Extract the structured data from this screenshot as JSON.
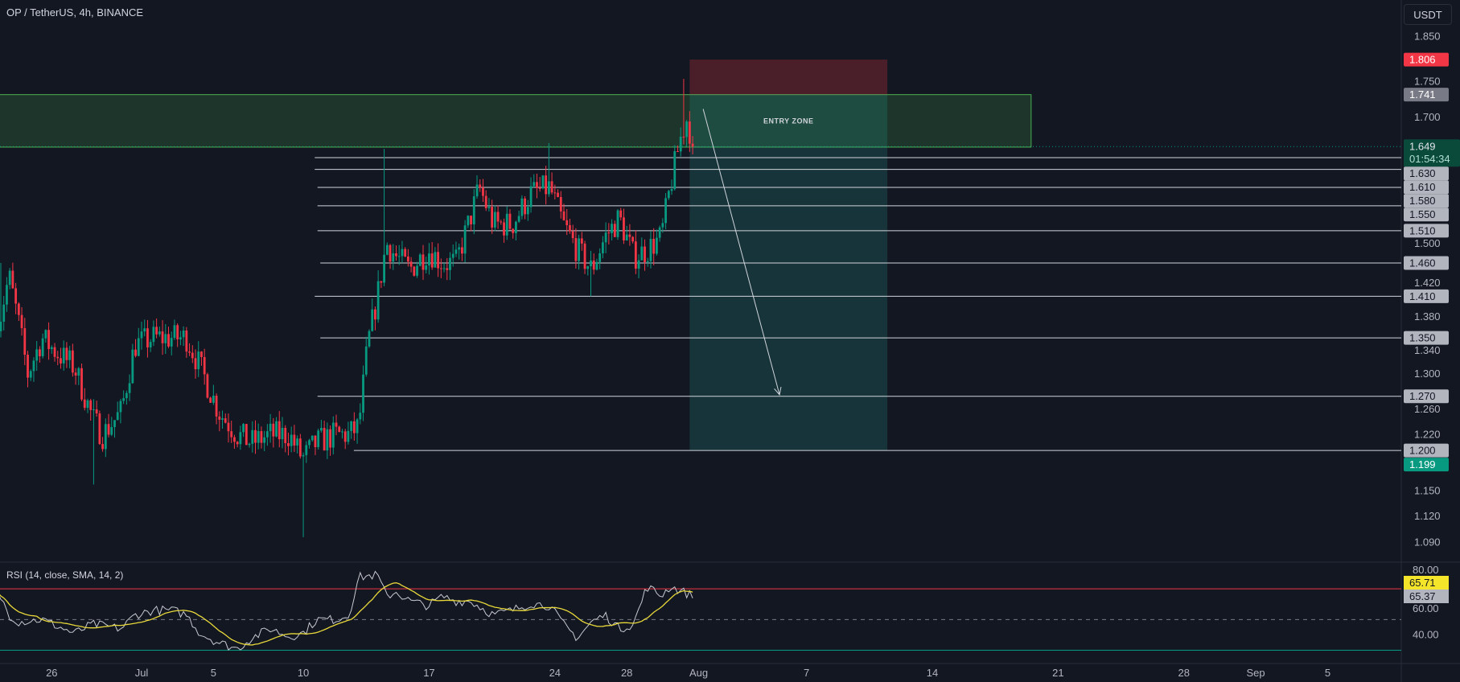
{
  "header": {
    "title": "OP / TetherUS, 4h, BINANCE",
    "currency": "USDT"
  },
  "price_axis": {
    "scale": "log",
    "ticks": [
      "1.850",
      "1.750",
      "1.700",
      "1.500",
      "1.420",
      "1.380",
      "1.340",
      "1.300",
      "1.260",
      "1.220",
      "1.150",
      "1.120",
      "1.090"
    ]
  },
  "price_labels": {
    "stop": "1.806",
    "entry_top": "1.741",
    "current": "1.649",
    "countdown": "01:54:34",
    "target": "1.199"
  },
  "levels": [
    "1.630",
    "1.610",
    "1.580",
    "1.550",
    "1.510",
    "1.460",
    "1.410",
    "1.350",
    "1.270",
    "1.200"
  ],
  "drawings": {
    "entry_zone_label": "ENTRY ZONE",
    "entry_zone": {
      "top": 1.741,
      "bottom": 1.648,
      "from": "06-12 00",
      "to": "08-19 12"
    },
    "position": {
      "stop": 1.806,
      "entry": 1.741,
      "target": 1.2,
      "from": "07-31 12",
      "to": "08-11 12"
    },
    "arrow": {
      "from": [
        "08-01 06",
        1.715
      ],
      "to": [
        "08-05 12",
        1.272
      ]
    }
  },
  "rsi": {
    "title": "RSI (14, close, SMA, 14, 2)",
    "ma_value": "65.71",
    "value": "65.37",
    "ticks": [
      "80.00",
      "60.00",
      "40.00"
    ],
    "bands": [
      70,
      50,
      30
    ]
  },
  "time_axis": [
    {
      "label": "26",
      "date": "06-26 00"
    },
    {
      "label": "Jul",
      "date": "07-01 00"
    },
    {
      "label": "5",
      "date": "07-05 00"
    },
    {
      "label": "10",
      "date": "07-10 00"
    },
    {
      "label": "17",
      "date": "07-17 00"
    },
    {
      "label": "24",
      "date": "07-24 00"
    },
    {
      "label": "28",
      "date": "07-28 00"
    },
    {
      "label": "Aug",
      "date": "08-01 00"
    },
    {
      "label": "7",
      "date": "08-07 00"
    },
    {
      "label": "14",
      "date": "08-14 00"
    },
    {
      "label": "21",
      "date": "08-21 00"
    },
    {
      "label": "28",
      "date": "08-28 00"
    },
    {
      "label": "Sep",
      "date": "09-01 00"
    },
    {
      "label": "5",
      "date": "09-05 00"
    }
  ],
  "colors": {
    "background": "#131722",
    "up": "#089981",
    "down": "#f23645",
    "rsi_line": "#c8cad0",
    "rsi_ma": "#e8d83a",
    "entry_zone": "#4caf50",
    "stop_zone": "#f23645",
    "target_zone": "#22ab94",
    "level_line": "#d1d4dc"
  },
  "chart_data": {
    "type": "candlestick",
    "interval": "4h",
    "close_path": [
      [
        "06-23 03",
        1.38
      ],
      [
        "06-23 15",
        1.44
      ],
      [
        "06-24 04",
        1.37
      ],
      [
        "06-24 16",
        1.3
      ],
      [
        "06-25 11",
        1.35
      ],
      [
        "06-26 06",
        1.33
      ],
      [
        "06-27 06",
        1.31
      ],
      [
        "06-28 07",
        1.24
      ],
      [
        "06-28 20",
        1.22
      ],
      [
        "06-29 21",
        1.25
      ],
      [
        "06-30 15",
        1.34
      ],
      [
        "07-01 16",
        1.35
      ],
      [
        "07-02 17",
        1.35
      ],
      [
        "07-03 12",
        1.35
      ],
      [
        "07-04 06",
        1.31
      ],
      [
        "07-05 07",
        1.25
      ],
      [
        "07-06 08",
        1.22
      ],
      [
        "07-07 03",
        1.21
      ],
      [
        "07-08 04",
        1.22
      ],
      [
        "07-09 05",
        1.22
      ],
      [
        "07-09 23",
        1.19
      ],
      [
        "07-10 18",
        1.21
      ],
      [
        "07-11 19",
        1.22
      ],
      [
        "07-12 13",
        1.22
      ],
      [
        "07-13 02",
        1.23
      ],
      [
        "07-13 14",
        1.34
      ],
      [
        "07-14 03",
        1.41
      ],
      [
        "07-14 15",
        1.49
      ],
      [
        "07-15 04",
        1.47
      ],
      [
        "07-15 22",
        1.45
      ],
      [
        "07-16 23",
        1.48
      ],
      [
        "07-17 18",
        1.46
      ],
      [
        "07-18 12",
        1.46
      ],
      [
        "07-19 07",
        1.53
      ],
      [
        "07-19 19",
        1.58
      ],
      [
        "07-20 14",
        1.52
      ],
      [
        "07-21 15",
        1.52
      ],
      [
        "07-22 16",
        1.57
      ],
      [
        "07-23 17",
        1.58
      ],
      [
        "07-24 11",
        1.52
      ],
      [
        "07-25 06",
        1.48
      ],
      [
        "07-26 01",
        1.45
      ],
      [
        "07-26 19",
        1.5
      ],
      [
        "07-27 14",
        1.53
      ],
      [
        "07-28 09",
        1.47
      ],
      [
        "07-29 03",
        1.48
      ],
      [
        "07-29 22",
        1.5
      ],
      [
        "07-30 10",
        1.58
      ],
      [
        "07-30 23",
        1.66
      ],
      [
        "07-31 09",
        1.7
      ],
      [
        "07-31 16",
        1.649
      ]
    ],
    "extremes": [
      [
        "06-23 06",
        1.46,
        "high"
      ],
      [
        "06-28 08",
        1.158,
        "low"
      ],
      [
        "07-10 00",
        1.096,
        "low"
      ],
      [
        "07-14 12",
        1.645,
        "high"
      ],
      [
        "07-23 16",
        1.655,
        "high"
      ],
      [
        "07-26 02",
        1.41,
        "low"
      ],
      [
        "07-31 04",
        1.77,
        "high"
      ]
    ],
    "last_candle": "07-31 16",
    "rsi_path": [
      [
        "06-23 03",
        65.5
      ],
      [
        "06-23 15",
        53
      ],
      [
        "06-24 04",
        48.5
      ],
      [
        "06-25 11",
        50
      ],
      [
        "06-26 06",
        46
      ],
      [
        "06-27 06",
        41
      ],
      [
        "06-28 07",
        47
      ],
      [
        "06-29 21",
        44
      ],
      [
        "06-30 15",
        53
      ],
      [
        "07-01 16",
        56
      ],
      [
        "07-02 17",
        56
      ],
      [
        "07-03 12",
        53
      ],
      [
        "07-04 06",
        41
      ],
      [
        "07-05 07",
        35
      ],
      [
        "07-06 08",
        31
      ],
      [
        "07-07 03",
        38
      ],
      [
        "07-08 04",
        44
      ],
      [
        "07-09 05",
        39
      ],
      [
        "07-09 23",
        41
      ],
      [
        "07-10 18",
        50
      ],
      [
        "07-11 19",
        50
      ],
      [
        "07-12 13",
        53
      ],
      [
        "07-13 02",
        77.6
      ],
      [
        "07-14 03",
        79
      ],
      [
        "07-14 15",
        65
      ],
      [
        "07-15 04",
        68
      ],
      [
        "07-15 22",
        62
      ],
      [
        "07-16 23",
        59
      ],
      [
        "07-17 18",
        65
      ],
      [
        "07-18 12",
        62
      ],
      [
        "07-19 07",
        62
      ],
      [
        "07-20 14",
        53
      ],
      [
        "07-21 15",
        56
      ],
      [
        "07-22 16",
        60.6
      ],
      [
        "07-23 17",
        59
      ],
      [
        "07-24 11",
        47
      ],
      [
        "07-25 06",
        38
      ],
      [
        "07-26 01",
        48.5
      ],
      [
        "07-26 19",
        53
      ],
      [
        "07-27 14",
        44
      ],
      [
        "07-28 09",
        47
      ],
      [
        "07-29 03",
        71.5
      ],
      [
        "07-29 22",
        65.5
      ],
      [
        "07-30 10",
        71.5
      ],
      [
        "07-31 16",
        65.4
      ]
    ],
    "rsi_ylim": [
      20,
      90
    ]
  }
}
